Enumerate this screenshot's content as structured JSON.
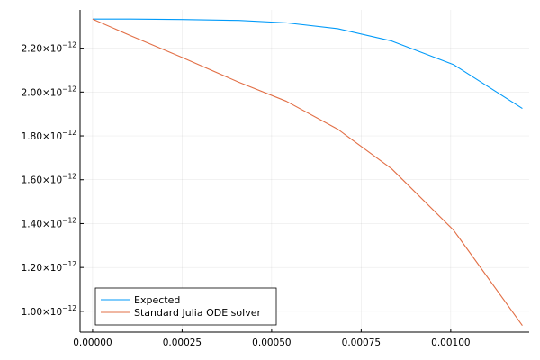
{
  "chart_data": {
    "type": "line",
    "title": "",
    "xlabel": "",
    "ylabel": "",
    "xlim": [
      -3.5e-05,
      0.001219
    ],
    "ylim": [
      9.05e-13,
      2.375e-12
    ],
    "grid": true,
    "legend_position": "bottom-left",
    "x_ticks": [
      {
        "value": 0.0,
        "label": "0.00000"
      },
      {
        "value": 0.00025,
        "label": "0.00025"
      },
      {
        "value": 0.0005,
        "label": "0.00050"
      },
      {
        "value": 0.00075,
        "label": "0.00075"
      },
      {
        "value": 0.001,
        "label": "0.00100"
      }
    ],
    "y_ticks": [
      {
        "value": 1e-12,
        "mantissa": "1.00×10",
        "exponent": "−12"
      },
      {
        "value": 1.2e-12,
        "mantissa": "1.20×10",
        "exponent": "−12"
      },
      {
        "value": 1.4e-12,
        "mantissa": "1.40×10",
        "exponent": "−12"
      },
      {
        "value": 1.6e-12,
        "mantissa": "1.60×10",
        "exponent": "−12"
      },
      {
        "value": 1.8e-12,
        "mantissa": "1.80×10",
        "exponent": "−12"
      },
      {
        "value": 2e-12,
        "mantissa": "2.00×10",
        "exponent": "−12"
      },
      {
        "value": 2.2e-12,
        "mantissa": "2.20×10",
        "exponent": "−12"
      }
    ],
    "series": [
      {
        "name": "Expected",
        "color": "#009af9",
        "x": [
          0.0,
          0.000105,
          0.00025,
          0.000408,
          0.000541,
          0.000685,
          0.000835,
          0.001008,
          0.0012
        ],
        "y": [
          2.333e-12,
          2.333e-12,
          2.331e-12,
          2.327e-12,
          2.316e-12,
          2.289e-12,
          2.233e-12,
          2.125e-12,
          1.925e-12
        ]
      },
      {
        "name": "Standard Julia ODE solver",
        "color": "#e26f46",
        "x": [
          0.0,
          0.000105,
          0.00025,
          0.000408,
          0.000541,
          0.000685,
          0.000835,
          0.001008,
          0.0012
        ],
        "y": [
          2.333e-12,
          2.258e-12,
          2.158e-12,
          2.045e-12,
          1.958e-12,
          1.83e-12,
          1.65e-12,
          1.37e-12,
          9.35e-13
        ]
      }
    ]
  }
}
